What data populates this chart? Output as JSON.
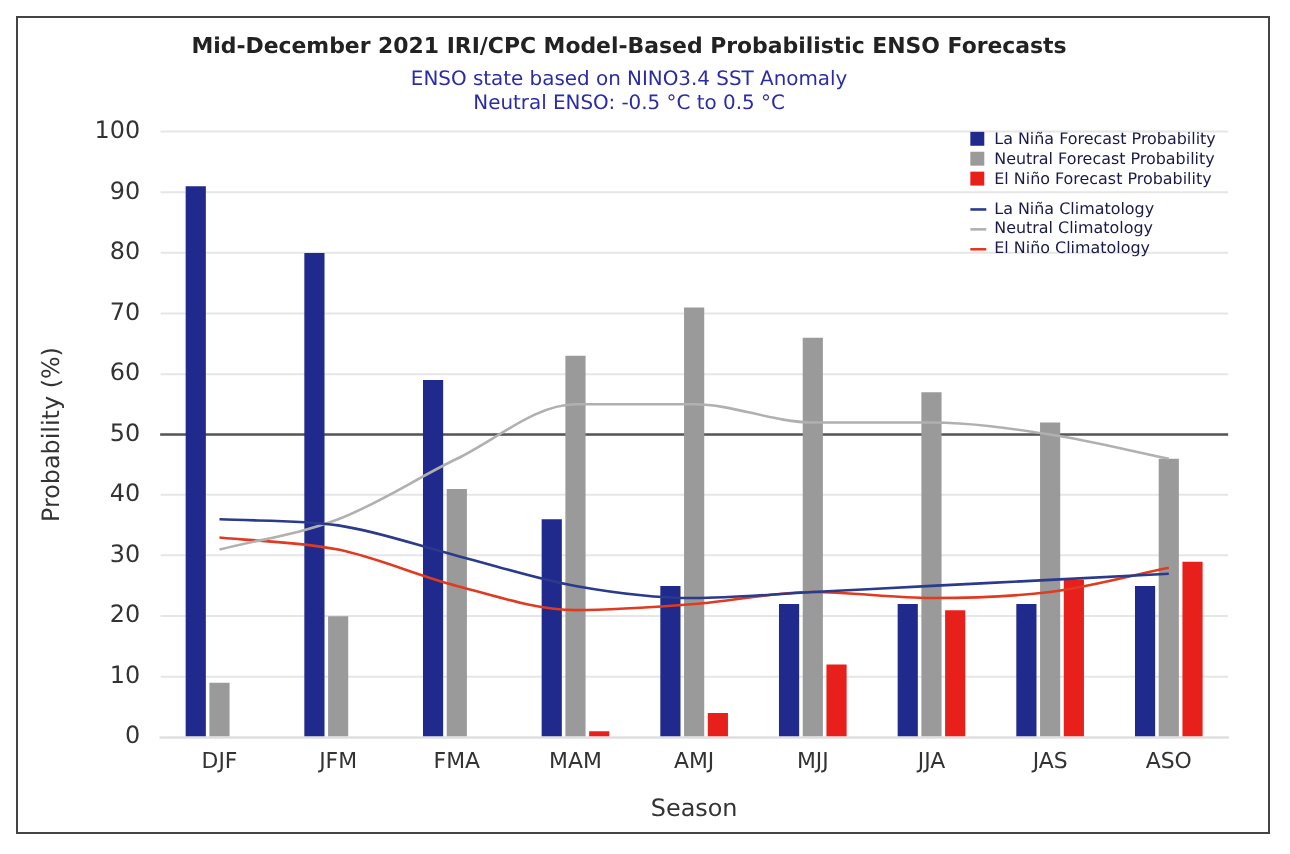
{
  "chart_data": {
    "type": "bar",
    "title": "Mid-December 2021 IRI/CPC Model-Based Probabilistic ENSO Forecasts",
    "subtitle": "ENSO state based on NINO3.4 SST Anomaly\nNeutral ENSO: -0.5 °C to 0.5 °C",
    "xlabel": "Season",
    "ylabel": "Probability (%)",
    "categories": [
      "DJF",
      "JFM",
      "FMA",
      "MAM",
      "AMJ",
      "MJJ",
      "JJA",
      "JAS",
      "ASO"
    ],
    "series": [
      {
        "name": "La Niña Forecast Probability",
        "color": "#1f2a8c",
        "values": [
          91,
          80,
          59,
          36,
          25,
          22,
          22,
          22,
          25
        ]
      },
      {
        "name": "Neutral Forecast Probability",
        "color": "#9a9a9a",
        "values": [
          9,
          20,
          41,
          63,
          71,
          66,
          57,
          52,
          46
        ]
      },
      {
        "name": "El Niño Forecast Probability",
        "color": "#e8201c",
        "values": [
          0,
          0,
          0,
          1,
          4,
          12,
          21,
          26,
          29
        ]
      },
      {
        "name": "La Niña Climatology",
        "type": "line",
        "color": "#2a3a8c",
        "values": [
          36,
          35,
          30,
          25,
          23,
          24,
          25,
          26,
          27
        ]
      },
      {
        "name": "Neutral Climatology",
        "type": "line",
        "color": "#b0b0b0",
        "values": [
          31,
          36,
          46,
          55,
          55,
          52,
          52,
          50,
          46
        ]
      },
      {
        "name": "El Niño Climatology",
        "type": "line",
        "color": "#e03a20",
        "values": [
          33,
          31,
          25,
          21,
          22,
          24,
          23,
          24,
          28
        ]
      }
    ],
    "ylim": [
      0,
      100
    ],
    "yticks": [
      0,
      10,
      20,
      30,
      40,
      50,
      60,
      70,
      80,
      90,
      100
    ],
    "ref_lines": [
      {
        "axis": "y",
        "value": 50,
        "color": "#555555"
      }
    ],
    "grid": "y",
    "legend": "top right",
    "marker": "none"
  }
}
